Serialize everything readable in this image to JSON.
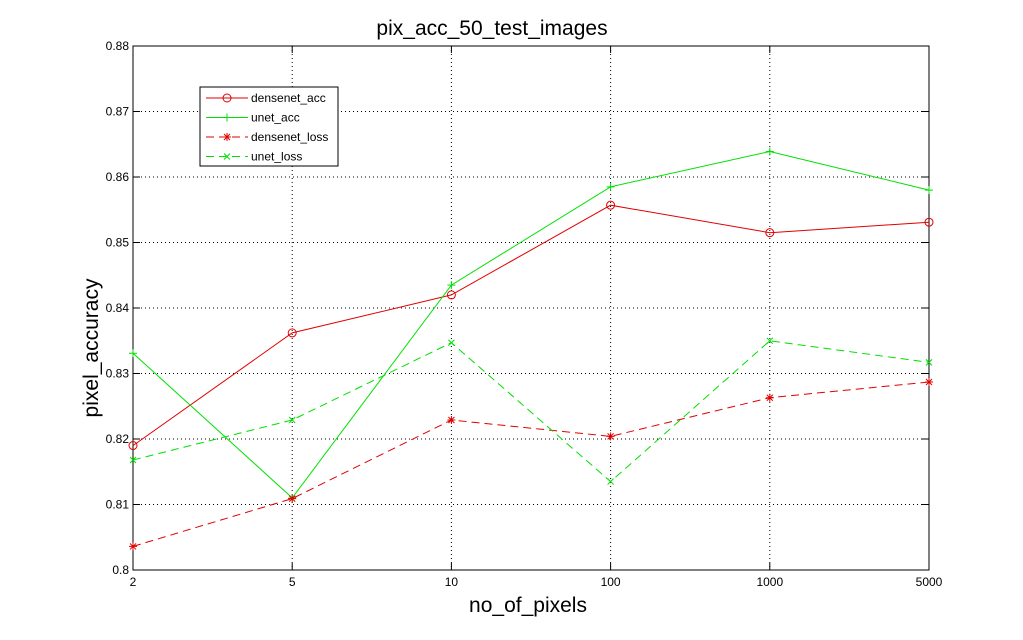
{
  "chart_data": {
    "type": "line",
    "title": "pix_acc_50_test_images",
    "xlabel": "no_of_pixels",
    "ylabel": "pixel_accuracy",
    "categories": [
      "2",
      "5",
      "10",
      "100",
      "1000",
      "5000"
    ],
    "ylim": [
      0.8,
      0.88
    ],
    "yticks": [
      "0.8",
      "0.81",
      "0.82",
      "0.83",
      "0.84",
      "0.85",
      "0.86",
      "0.87",
      "0.88"
    ],
    "grid": true,
    "legend_position": "top-left",
    "series": [
      {
        "name": "densenet_acc",
        "color": "#e00000",
        "style": "solid",
        "marker": "circle",
        "values": [
          0.819,
          0.8362,
          0.842,
          0.8557,
          0.8515,
          0.8531
        ]
      },
      {
        "name": "unet_acc",
        "color": "#00e000",
        "style": "solid",
        "marker": "plus",
        "values": [
          0.8331,
          0.811,
          0.8435,
          0.8585,
          0.8639,
          0.858
        ]
      },
      {
        "name": "densenet_loss",
        "color": "#e00000",
        "style": "dashed",
        "marker": "star",
        "values": [
          0.8036,
          0.8109,
          0.8229,
          0.8204,
          0.8263,
          0.8287
        ]
      },
      {
        "name": "unet_loss",
        "color": "#00e000",
        "style": "dashed",
        "marker": "x",
        "values": [
          0.8168,
          0.8229,
          0.8347,
          0.8135,
          0.835,
          0.8317
        ]
      }
    ]
  }
}
